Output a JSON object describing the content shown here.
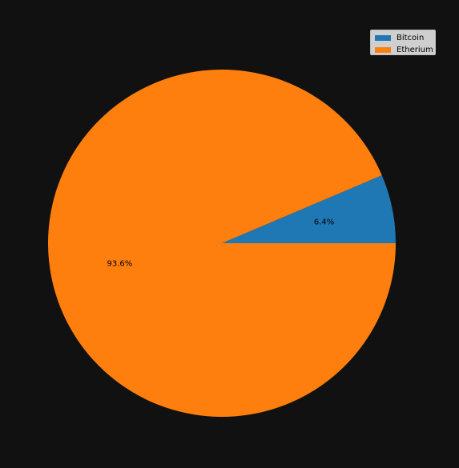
{
  "chart_data": {
    "type": "pie",
    "categories": [
      "Bitcoin",
      "Etherium"
    ],
    "values": [
      6.4,
      93.6
    ],
    "value_labels": [
      "6.4%",
      "93.6%"
    ],
    "colors": [
      "#1f77b4",
      "#ff7f0e"
    ],
    "background": "#111111",
    "start_angle": 0,
    "legend": {
      "placement": "top-right",
      "entries": [
        "Bitcoin",
        "Etherium"
      ]
    }
  }
}
